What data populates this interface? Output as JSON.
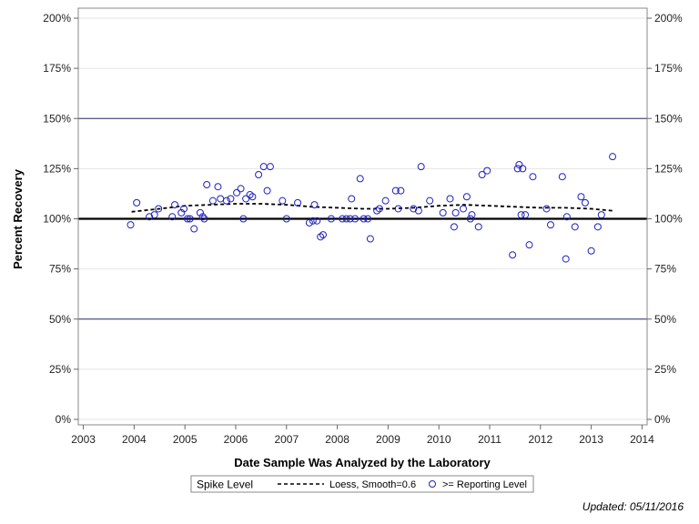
{
  "chart_data": {
    "type": "scatter",
    "xlabel": "Date Sample Was Analyzed by the Laboratory",
    "ylabel": "Percent Recovery",
    "x_ticks": [
      "2003",
      "2004",
      "2005",
      "2006",
      "2007",
      "2008",
      "2009",
      "2010",
      "2011",
      "2012",
      "2013",
      "2014"
    ],
    "xlim": [
      2002.9,
      2014.1
    ],
    "y_ticks": [
      "0%",
      "25%",
      "50%",
      "75%",
      "100%",
      "125%",
      "150%",
      "175%",
      "200%"
    ],
    "ylim": [
      0,
      200
    ],
    "reference_lines": [
      {
        "y": 150,
        "style": "thin"
      },
      {
        "y": 100,
        "style": "thick"
      },
      {
        "y": 50,
        "style": "thin"
      }
    ],
    "grid": true,
    "legend_position": "bottom",
    "legend": {
      "title": "Spike Level",
      "loess_label": "Loess, Smooth=0.6",
      "points_label": ">= Reporting Level"
    },
    "point_color": "#2020c0",
    "loess_color": "#000000",
    "series": [
      {
        "name": ">= Reporting Level",
        "points": [
          [
            2003.93,
            97
          ],
          [
            2004.05,
            108
          ],
          [
            2004.3,
            101
          ],
          [
            2004.4,
            102
          ],
          [
            2004.48,
            105
          ],
          [
            2004.75,
            101
          ],
          [
            2004.8,
            107
          ],
          [
            2004.93,
            103
          ],
          [
            2004.98,
            105
          ],
          [
            2005.05,
            100
          ],
          [
            2005.1,
            100
          ],
          [
            2005.18,
            95
          ],
          [
            2005.3,
            103
          ],
          [
            2005.35,
            101
          ],
          [
            2005.38,
            100
          ],
          [
            2005.43,
            117
          ],
          [
            2005.55,
            109
          ],
          [
            2005.65,
            116
          ],
          [
            2005.7,
            110
          ],
          [
            2005.82,
            109
          ],
          [
            2005.9,
            110
          ],
          [
            2006.02,
            113
          ],
          [
            2006.1,
            115
          ],
          [
            2006.15,
            100
          ],
          [
            2006.2,
            110
          ],
          [
            2006.28,
            112
          ],
          [
            2006.33,
            111
          ],
          [
            2006.45,
            122
          ],
          [
            2006.55,
            126
          ],
          [
            2006.62,
            114
          ],
          [
            2006.68,
            126
          ],
          [
            2006.92,
            109
          ],
          [
            2007.0,
            100
          ],
          [
            2007.22,
            108
          ],
          [
            2007.45,
            98
          ],
          [
            2007.52,
            99
          ],
          [
            2007.55,
            107
          ],
          [
            2007.6,
            99
          ],
          [
            2007.67,
            91
          ],
          [
            2007.72,
            92
          ],
          [
            2007.88,
            100
          ],
          [
            2008.1,
            100
          ],
          [
            2008.18,
            100
          ],
          [
            2008.25,
            100
          ],
          [
            2008.28,
            110
          ],
          [
            2008.35,
            100
          ],
          [
            2008.45,
            120
          ],
          [
            2008.52,
            100
          ],
          [
            2008.6,
            100
          ],
          [
            2008.65,
            90
          ],
          [
            2008.78,
            104
          ],
          [
            2008.83,
            105
          ],
          [
            2008.95,
            109
          ],
          [
            2009.15,
            114
          ],
          [
            2009.2,
            105
          ],
          [
            2009.25,
            114
          ],
          [
            2009.5,
            105
          ],
          [
            2009.6,
            104
          ],
          [
            2009.65,
            126
          ],
          [
            2009.82,
            109
          ],
          [
            2010.08,
            103
          ],
          [
            2010.22,
            110
          ],
          [
            2010.3,
            96
          ],
          [
            2010.33,
            103
          ],
          [
            2010.48,
            105
          ],
          [
            2010.55,
            111
          ],
          [
            2010.62,
            100
          ],
          [
            2010.65,
            102
          ],
          [
            2010.78,
            96
          ],
          [
            2010.85,
            122
          ],
          [
            2010.95,
            124
          ],
          [
            2011.45,
            82
          ],
          [
            2011.55,
            125
          ],
          [
            2011.58,
            127
          ],
          [
            2011.62,
            102
          ],
          [
            2011.65,
            125
          ],
          [
            2011.7,
            102
          ],
          [
            2011.78,
            87
          ],
          [
            2011.85,
            121
          ],
          [
            2012.12,
            105
          ],
          [
            2012.2,
            97
          ],
          [
            2012.43,
            121
          ],
          [
            2012.5,
            80
          ],
          [
            2012.52,
            101
          ],
          [
            2012.68,
            96
          ],
          [
            2012.8,
            111
          ],
          [
            2012.88,
            108
          ],
          [
            2013.0,
            84
          ],
          [
            2013.13,
            96
          ],
          [
            2013.2,
            102
          ],
          [
            2013.42,
            131
          ]
        ]
      },
      {
        "name": "Loess, Smooth=0.6",
        "points": [
          [
            2003.95,
            103.5
          ],
          [
            2004.5,
            105
          ],
          [
            2005.0,
            106.5
          ],
          [
            2005.5,
            107
          ],
          [
            2006.0,
            107.5
          ],
          [
            2006.5,
            107.5
          ],
          [
            2007.0,
            107
          ],
          [
            2007.5,
            106
          ],
          [
            2008.0,
            105.5
          ],
          [
            2008.5,
            105
          ],
          [
            2009.0,
            105
          ],
          [
            2009.5,
            105.5
          ],
          [
            2010.0,
            106.5
          ],
          [
            2010.5,
            107
          ],
          [
            2011.0,
            106.5
          ],
          [
            2011.5,
            106
          ],
          [
            2012.0,
            105.5
          ],
          [
            2012.5,
            105.5
          ],
          [
            2013.0,
            105
          ],
          [
            2013.42,
            104
          ]
        ]
      }
    ]
  },
  "footer": {
    "updated": "Updated: 05/11/2016"
  }
}
